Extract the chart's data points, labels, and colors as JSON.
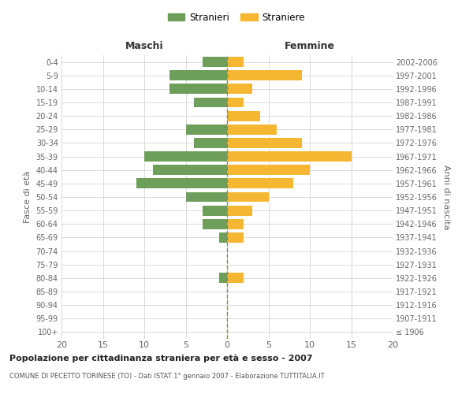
{
  "age_groups": [
    "100+",
    "95-99",
    "90-94",
    "85-89",
    "80-84",
    "75-79",
    "70-74",
    "65-69",
    "60-64",
    "55-59",
    "50-54",
    "45-49",
    "40-44",
    "35-39",
    "30-34",
    "25-29",
    "20-24",
    "15-19",
    "10-14",
    "5-9",
    "0-4"
  ],
  "birth_years": [
    "≤ 1906",
    "1907-1911",
    "1912-1916",
    "1917-1921",
    "1922-1926",
    "1927-1931",
    "1932-1936",
    "1937-1941",
    "1942-1946",
    "1947-1951",
    "1952-1956",
    "1957-1961",
    "1962-1966",
    "1967-1971",
    "1972-1976",
    "1977-1981",
    "1982-1986",
    "1987-1991",
    "1992-1996",
    "1997-2001",
    "2002-2006"
  ],
  "males": [
    0,
    0,
    0,
    0,
    1,
    0,
    0,
    1,
    3,
    3,
    5,
    11,
    9,
    10,
    4,
    5,
    0,
    4,
    7,
    7,
    3
  ],
  "females": [
    0,
    0,
    0,
    0,
    2,
    0,
    0,
    2,
    2,
    3,
    5,
    8,
    10,
    15,
    9,
    6,
    4,
    2,
    3,
    9,
    2
  ],
  "male_color": "#6d9e5a",
  "female_color": "#f5b731",
  "grid_color": "#cccccc",
  "dashed_line_color": "#8a8a50",
  "title": "Popolazione per cittadinanza straniera per età e sesso - 2007",
  "subtitle": "COMUNE DI PECETTO TORINESE (TO) - Dati ISTAT 1° gennaio 2007 - Elaborazione TUTTITALIA.IT",
  "xlabel_left": "Maschi",
  "xlabel_right": "Femmine",
  "ylabel_left": "Fasce di età",
  "ylabel_right": "Anni di nascita",
  "legend_male": "Stranieri",
  "legend_female": "Straniere",
  "xlim": 20,
  "background_color": "#ffffff",
  "bar_height": 0.75
}
